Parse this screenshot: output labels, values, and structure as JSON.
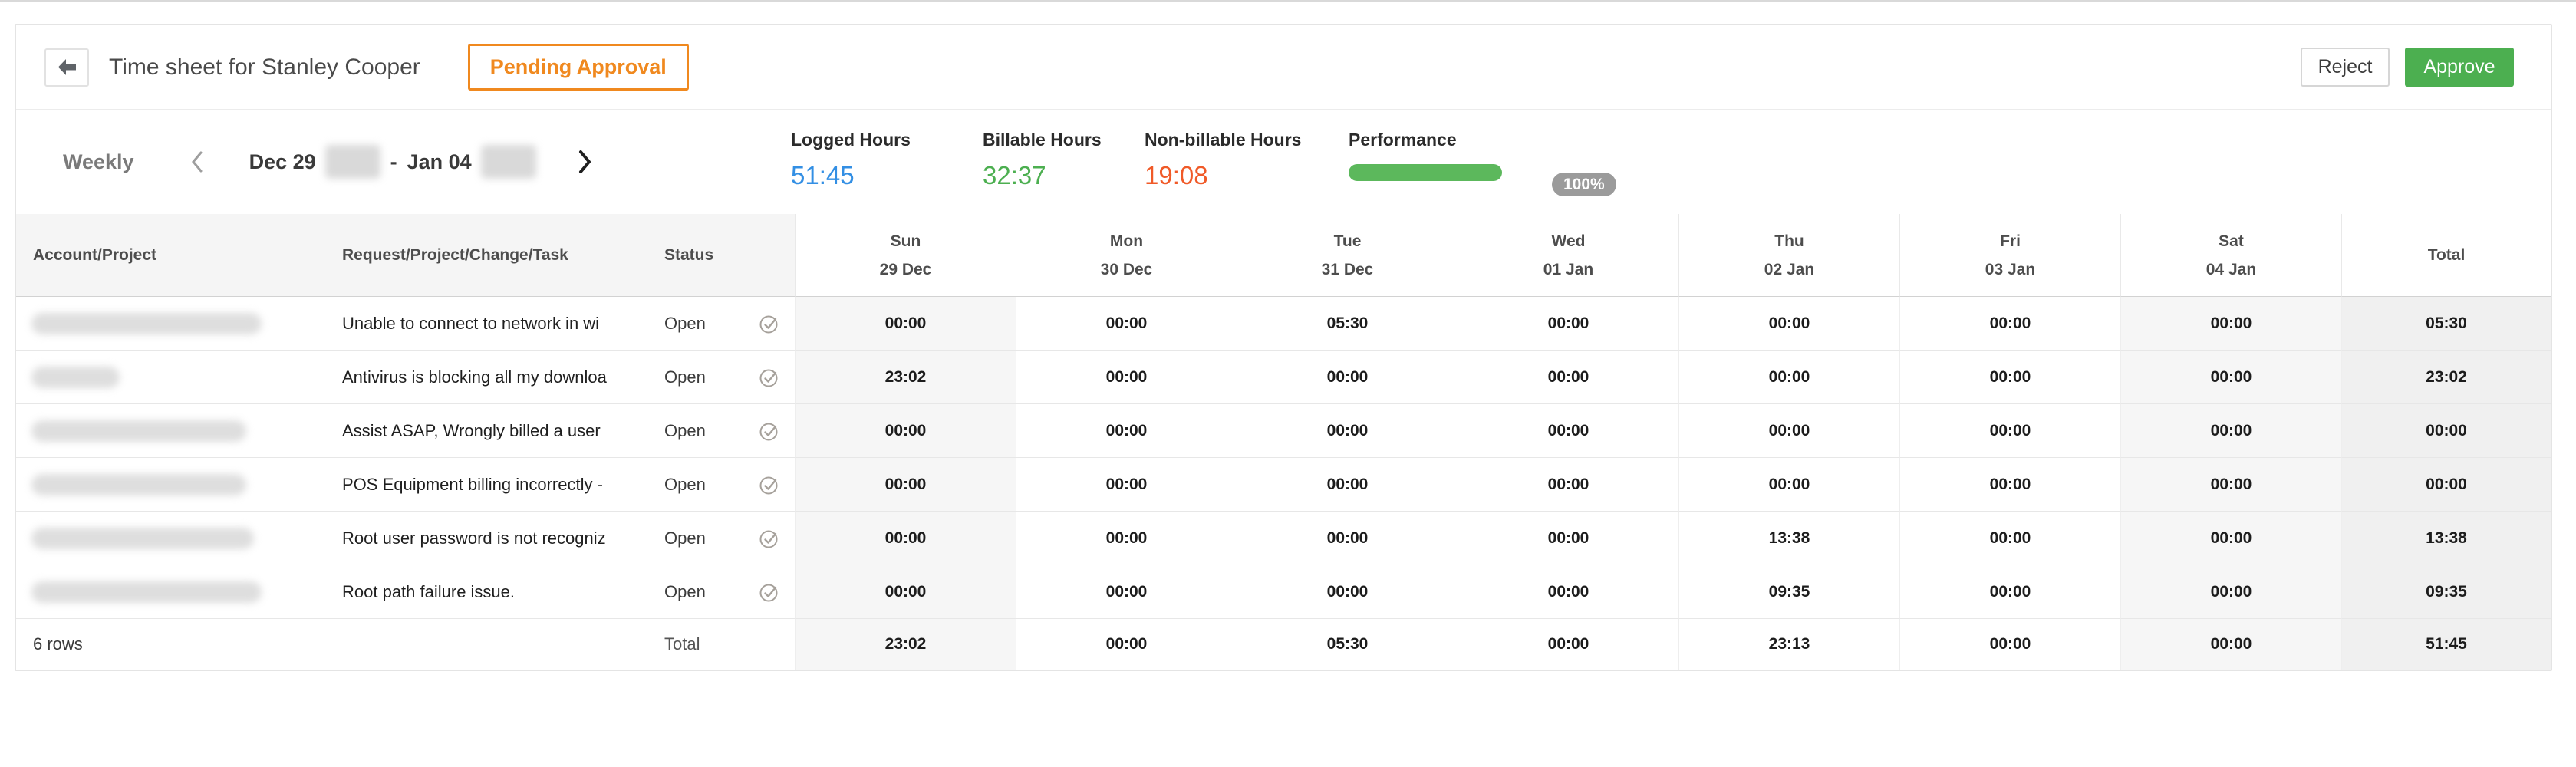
{
  "page": {
    "title": "Time sheet for Stanley Cooper",
    "status_badge": "Pending Approval",
    "reject_label": "Reject",
    "approve_label": "Approve"
  },
  "period": {
    "mode": "Weekly",
    "range_start": "Dec 29",
    "range_separator": "-",
    "range_end": "Jan 04"
  },
  "stats": [
    {
      "label": "Logged Hours",
      "value": "51:45",
      "color": "#338fe4"
    },
    {
      "label": "Billable Hours",
      "value": "32:37",
      "color": "#4caf50"
    },
    {
      "label": "Non-billable Hours",
      "value": "19:08",
      "color": "#f05a28"
    }
  ],
  "performance": {
    "label": "Performance",
    "percent": "100%",
    "bar_color": "#5cb85c",
    "pill_color": "#9b9b9b"
  },
  "table": {
    "columns": {
      "account": "Account/Project",
      "request": "Request/Project/Change/Task",
      "status": "Status",
      "total": "Total"
    },
    "days": [
      {
        "name": "Sun",
        "date": "29 Dec"
      },
      {
        "name": "Mon",
        "date": "30 Dec"
      },
      {
        "name": "Tue",
        "date": "31 Dec"
      },
      {
        "name": "Wed",
        "date": "01 Jan"
      },
      {
        "name": "Thu",
        "date": "02 Jan"
      },
      {
        "name": "Fri",
        "date": "03 Jan"
      },
      {
        "name": "Sat",
        "date": "04 Jan"
      }
    ],
    "rows": [
      {
        "request": "Unable to connect to network in wi",
        "status": "Open",
        "hours": [
          "00:00",
          "00:00",
          "05:30",
          "00:00",
          "00:00",
          "00:00",
          "00:00"
        ],
        "total": "05:30"
      },
      {
        "request": "Antivirus is blocking all my downloa",
        "status": "Open",
        "hours": [
          "23:02",
          "00:00",
          "00:00",
          "00:00",
          "00:00",
          "00:00",
          "00:00"
        ],
        "total": "23:02"
      },
      {
        "request": "Assist ASAP, Wrongly billed a user",
        "status": "Open",
        "hours": [
          "00:00",
          "00:00",
          "00:00",
          "00:00",
          "00:00",
          "00:00",
          "00:00"
        ],
        "total": "00:00"
      },
      {
        "request": "POS Equipment billing incorrectly -",
        "status": "Open",
        "hours": [
          "00:00",
          "00:00",
          "00:00",
          "00:00",
          "00:00",
          "00:00",
          "00:00"
        ],
        "total": "00:00"
      },
      {
        "request": "Root user password is not recogniz",
        "status": "Open",
        "hours": [
          "00:00",
          "00:00",
          "00:00",
          "00:00",
          "13:38",
          "00:00",
          "00:00"
        ],
        "total": "13:38"
      },
      {
        "request": "Root path failure issue.",
        "status": "Open",
        "hours": [
          "00:00",
          "00:00",
          "00:00",
          "00:00",
          "09:35",
          "00:00",
          "00:00"
        ],
        "total": "09:35"
      }
    ],
    "footer": {
      "rows_count": "6 rows",
      "total_label": "Total",
      "day_totals": [
        "23:02",
        "00:00",
        "05:30",
        "00:00",
        "23:13",
        "00:00",
        "00:00"
      ],
      "grand_total": "51:45"
    }
  }
}
